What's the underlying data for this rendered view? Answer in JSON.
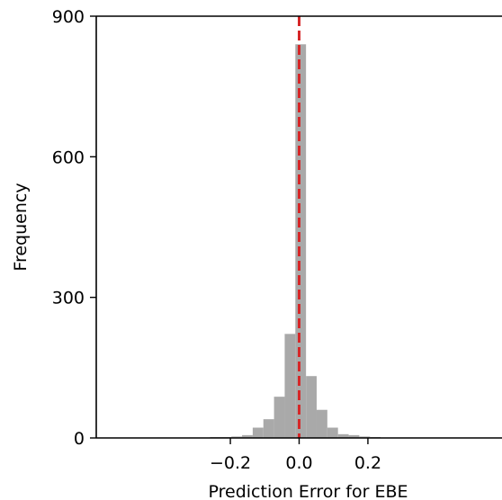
{
  "chart_data": {
    "type": "bar",
    "title": "",
    "xlabel": "Prediction Error for EBE",
    "ylabel": "Frequency",
    "xlim": [
      -0.59,
      0.59
    ],
    "ylim": [
      0,
      900
    ],
    "xticks": [
      -0.2,
      0.0,
      0.2
    ],
    "xtick_labels": [
      "−0.2",
      "0.0",
      "0.2"
    ],
    "yticks": [
      0,
      300,
      600,
      900
    ],
    "ytick_labels": [
      "0",
      "300",
      "600",
      "900"
    ],
    "grid": false,
    "bar_color": "#a9a9a9",
    "reference_line": {
      "x": 0.0,
      "color": "#d62728",
      "style": "dashed"
    },
    "bin_width": 0.031,
    "bins": [
      {
        "x0": -0.414,
        "count": 1
      },
      {
        "x0": -0.383,
        "count": 0
      },
      {
        "x0": -0.352,
        "count": 0
      },
      {
        "x0": -0.321,
        "count": 1
      },
      {
        "x0": -0.29,
        "count": 1
      },
      {
        "x0": -0.259,
        "count": 2
      },
      {
        "x0": -0.228,
        "count": 2
      },
      {
        "x0": -0.197,
        "count": 3
      },
      {
        "x0": -0.166,
        "count": 6
      },
      {
        "x0": -0.135,
        "count": 22
      },
      {
        "x0": -0.104,
        "count": 40
      },
      {
        "x0": -0.073,
        "count": 88
      },
      {
        "x0": -0.042,
        "count": 222
      },
      {
        "x0": -0.011,
        "count": 840
      },
      {
        "x0": 0.02,
        "count": 132
      },
      {
        "x0": 0.051,
        "count": 60
      },
      {
        "x0": 0.082,
        "count": 22
      },
      {
        "x0": 0.113,
        "count": 8
      },
      {
        "x0": 0.144,
        "count": 6
      },
      {
        "x0": 0.175,
        "count": 3
      },
      {
        "x0": 0.206,
        "count": 2
      },
      {
        "x0": 0.237,
        "count": 1
      },
      {
        "x0": 0.268,
        "count": 1
      },
      {
        "x0": 0.299,
        "count": 1
      }
    ]
  }
}
